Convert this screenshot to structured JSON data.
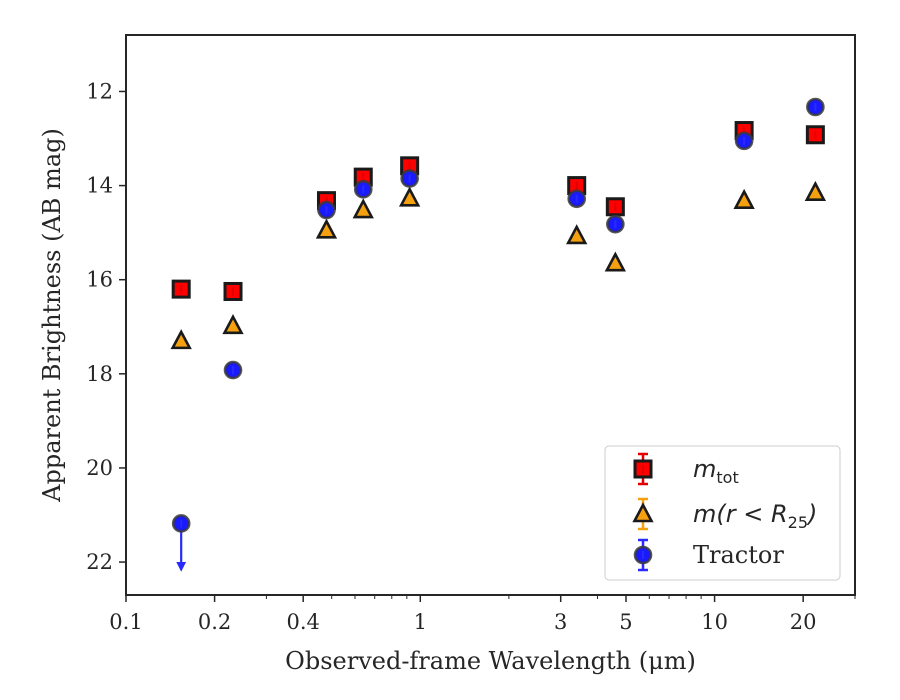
{
  "chart_data": {
    "type": "scatter",
    "x_scale": "log",
    "y_inverted": true,
    "xlim": [
      0.1,
      30
    ],
    "ylim": [
      10.8,
      22.7
    ],
    "xlabel": "Observed-frame Wavelength (μm)",
    "ylabel": "Apparent Brightness (AB mag)",
    "x_ticks": [
      {
        "value": 0.1,
        "label": "0.1"
      },
      {
        "value": 0.2,
        "label": "0.2"
      },
      {
        "value": 0.4,
        "label": "0.4"
      },
      {
        "value": 1,
        "label": "1"
      },
      {
        "value": 3,
        "label": "3"
      },
      {
        "value": 5,
        "label": "5"
      },
      {
        "value": 10,
        "label": "10"
      },
      {
        "value": 20,
        "label": "20"
      }
    ],
    "y_ticks": [
      {
        "value": 12,
        "label": "12"
      },
      {
        "value": 14,
        "label": "14"
      },
      {
        "value": 16,
        "label": "16"
      },
      {
        "value": 18,
        "label": "18"
      },
      {
        "value": 20,
        "label": "20"
      },
      {
        "value": 22,
        "label": "22"
      }
    ],
    "grid": false,
    "legend_position": "bottom-right",
    "series": [
      {
        "name": "m_tot",
        "label_main": "m",
        "label_sub": "tot",
        "marker": "square",
        "color": "#ff0000",
        "errcolor": "#e00000",
        "x": [
          0.154,
          0.231,
          0.48,
          0.64,
          0.92,
          3.4,
          4.6,
          12.6,
          22.0
        ],
        "y": [
          16.2,
          16.25,
          14.32,
          13.82,
          13.58,
          14.0,
          14.45,
          12.83,
          12.92
        ]
      },
      {
        "name": "m(r < R25)",
        "label_main": "m(r < R",
        "label_sub": "25",
        "label_end": ")",
        "marker": "triangle",
        "color": "#f5a00f",
        "errcolor": "#f5a00f",
        "x": [
          0.154,
          0.231,
          0.48,
          0.64,
          0.92,
          3.4,
          4.6,
          12.6,
          22.0
        ],
        "y": [
          17.3,
          16.98,
          14.95,
          14.52,
          14.27,
          15.07,
          15.65,
          14.32,
          14.15
        ]
      },
      {
        "name": "Tractor",
        "label_main": "Tractor",
        "marker": "circle",
        "color": "#1a1aff",
        "errcolor": "#2a2aff",
        "x": [
          0.154,
          0.231,
          0.48,
          0.64,
          0.92,
          3.4,
          4.6,
          12.6,
          22.0
        ],
        "y": [
          21.18,
          17.92,
          14.52,
          14.08,
          13.85,
          14.28,
          14.82,
          13.05,
          12.33
        ],
        "upper_limit_index": 0,
        "upper_limit_to": 22.1
      }
    ]
  }
}
